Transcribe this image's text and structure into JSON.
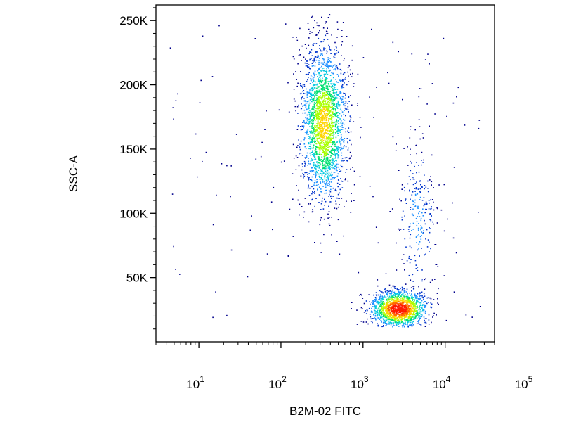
{
  "chart_data": {
    "type": "scatter",
    "style": "density-colored flow cytometry dot plot",
    "xlabel": "B2M-02 FITC",
    "ylabel": "SSC-A",
    "x_scale": "log",
    "xlim": [
      3,
      40000
    ],
    "ylim": [
      0,
      262144
    ],
    "x_ticks": [
      {
        "base": "10",
        "exp": "1",
        "value": 10
      },
      {
        "base": "10",
        "exp": "2",
        "value": 100
      },
      {
        "base": "10",
        "exp": "3",
        "value": 1000
      },
      {
        "base": "10",
        "exp": "4",
        "value": 10000
      },
      {
        "base": "10",
        "exp": "5",
        "value": 100000
      }
    ],
    "y_ticks": [
      {
        "label": "50K",
        "value": 50000
      },
      {
        "label": "100K",
        "value": 100000
      },
      {
        "label": "150K",
        "value": 150000
      },
      {
        "label": "200K",
        "value": 200000
      },
      {
        "label": "250K",
        "value": 250000
      }
    ],
    "grid": false,
    "density_colors": [
      "#00008b",
      "#0033cc",
      "#1e90ff",
      "#00c8e0",
      "#00e070",
      "#a8ff00",
      "#ffd400",
      "#ff6a00",
      "#ff1a00"
    ],
    "populations": [
      {
        "center_x": 330,
        "center_y": 170000,
        "spread_log10_x": 0.14,
        "spread_y": 30000,
        "peak_density": 0.62
      },
      {
        "center_x": 2700,
        "center_y": 26000,
        "spread_log10_x": 0.17,
        "spread_y": 7000,
        "peak_density": 1.0
      },
      {
        "center_x": 4500,
        "center_y": 95000,
        "spread_log10_x": 0.12,
        "spread_y": 32000,
        "peak_density": 0.15
      }
    ]
  }
}
